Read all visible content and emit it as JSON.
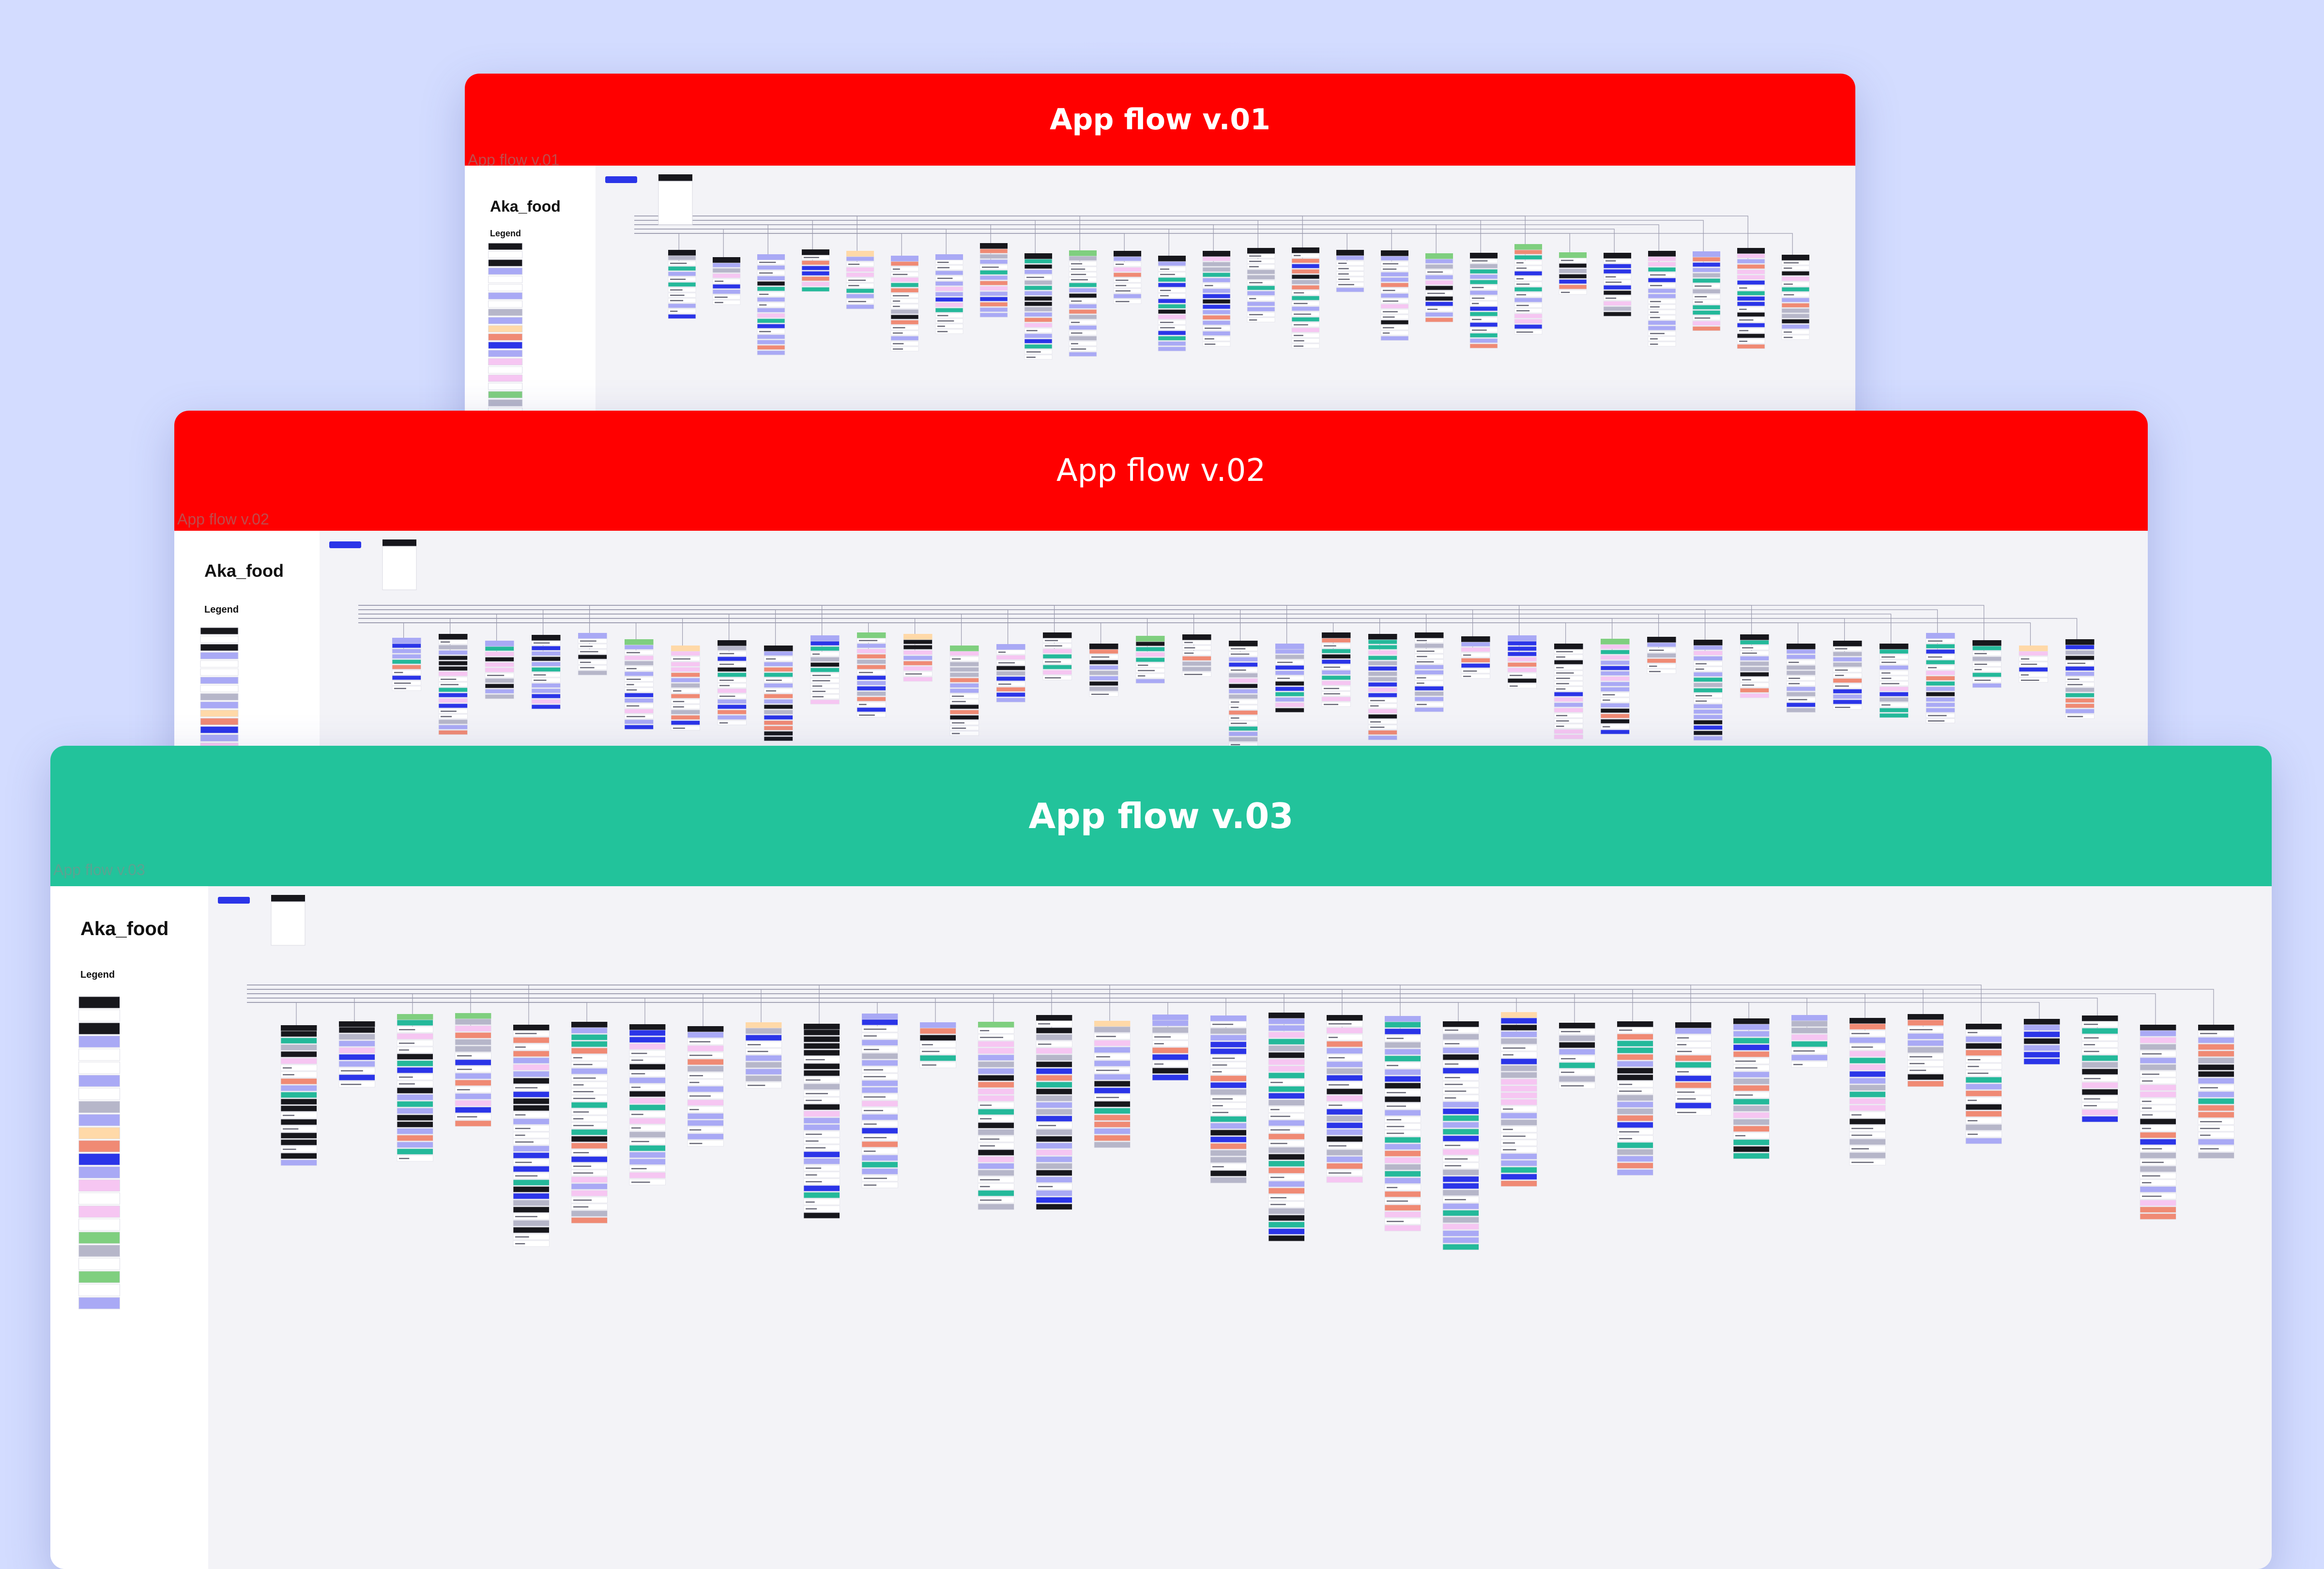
{
  "boards": [
    {
      "id": "v01",
      "header_text": "App flow v.01",
      "header_color": "#ff0000",
      "tag_label": "App flow v.01",
      "brand": "Aka_food",
      "legend_label": "Legend",
      "header_weight": "bold"
    },
    {
      "id": "v02",
      "header_text": "App flow v.02",
      "header_color": "#ff0000",
      "tag_label": "App flow v.02",
      "brand": "Aka_food",
      "legend_label": "Legend",
      "header_weight": "normal"
    },
    {
      "id": "v03",
      "header_text": "App flow v.03",
      "header_color": "#22c39b",
      "tag_label": "App flow v.03",
      "brand": "Aka_food",
      "legend_label": "Legend",
      "header_weight": "bold"
    }
  ],
  "colors": {
    "background": "#d3dcff",
    "canvas": "#f3f3f7",
    "card": "#ffffff",
    "dark": "#17171c",
    "purple": "#a9a9f5",
    "blue": "#2b35e8",
    "teal": "#24b99a",
    "green": "#7fcf7f",
    "peach": "#ffd9a8",
    "pink": "#f6c6f2",
    "grey": "#b6b6c9",
    "salmon": "#f08a74",
    "connector": "#9a9aae"
  }
}
